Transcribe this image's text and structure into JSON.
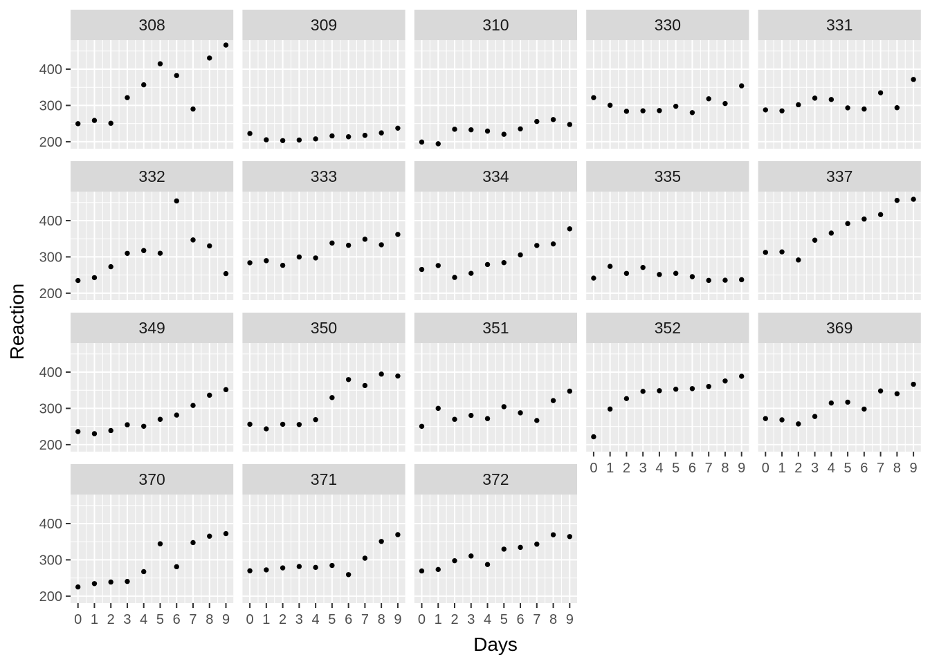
{
  "figure": {
    "x_axis_title": "Days",
    "y_axis_title": "Reaction"
  },
  "chart_data": {
    "type": "scatter",
    "title": "",
    "xlabel": "Days",
    "ylabel": "Reaction",
    "x": [
      0,
      1,
      2,
      3,
      4,
      5,
      6,
      7,
      8,
      9
    ],
    "x_ticks": [
      0,
      1,
      2,
      3,
      4,
      5,
      6,
      7,
      8,
      9
    ],
    "y_ticks": [
      200,
      300,
      400
    ],
    "y_minor_ticks": [
      250,
      350,
      450
    ],
    "x_minor_ticks": [
      0.5,
      1.5,
      2.5,
      3.5,
      4.5,
      5.5,
      6.5,
      7.5,
      8.5
    ],
    "xlim": [
      -0.45,
      9.45
    ],
    "ylim": [
      180.7,
      480.0
    ],
    "grid": "major-and-minor-white",
    "legend": "none",
    "facet_columns": 5,
    "facets": [
      {
        "subject": "308",
        "values": [
          249.6,
          258.7,
          250.8,
          321.4,
          356.9,
          414.7,
          382.2,
          290.1,
          430.6,
          466.4
        ]
      },
      {
        "subject": "309",
        "values": [
          222.7,
          205.3,
          203.0,
          204.7,
          207.7,
          216.0,
          213.6,
          217.7,
          224.3,
          237.3
        ]
      },
      {
        "subject": "310",
        "values": [
          199.1,
          194.3,
          234.3,
          232.8,
          229.3,
          220.5,
          235.4,
          255.8,
          261.0,
          247.5
        ]
      },
      {
        "subject": "330",
        "values": [
          321.5,
          300.4,
          283.9,
          285.1,
          285.8,
          297.6,
          280.2,
          318.3,
          305.3,
          354.0
        ]
      },
      {
        "subject": "331",
        "values": [
          287.6,
          285.0,
          301.8,
          320.1,
          316.3,
          293.3,
          290.1,
          334.8,
          293.7,
          371.6
        ]
      },
      {
        "subject": "332",
        "values": [
          234.9,
          242.8,
          273.0,
          309.8,
          317.5,
          310.0,
          454.2,
          346.8,
          330.3,
          253.9
        ]
      },
      {
        "subject": "333",
        "values": [
          283.8,
          289.6,
          276.8,
          299.8,
          297.2,
          338.2,
          332.0,
          348.8,
          333.4,
          362.0
        ]
      },
      {
        "subject": "334",
        "values": [
          265.5,
          276.2,
          243.4,
          254.7,
          279.0,
          284.2,
          305.5,
          331.5,
          335.7,
          377.3
        ]
      },
      {
        "subject": "335",
        "values": [
          241.6,
          273.9,
          254.5,
          270.8,
          251.5,
          254.6,
          245.5,
          235.3,
          235.8,
          237.2
        ]
      },
      {
        "subject": "337",
        "values": [
          312.4,
          313.8,
          291.6,
          346.1,
          365.7,
          391.8,
          404.3,
          416.7,
          455.9,
          458.9
        ]
      },
      {
        "subject": "349",
        "values": [
          236.1,
          230.3,
          238.9,
          254.9,
          250.7,
          269.8,
          281.6,
          308.1,
          336.3,
          351.6
        ]
      },
      {
        "subject": "350",
        "values": [
          256.3,
          243.5,
          256.2,
          255.5,
          268.9,
          329.7,
          379.4,
          362.9,
          394.5,
          389.1
        ]
      },
      {
        "subject": "351",
        "values": [
          250.5,
          300.1,
          269.9,
          280.6,
          271.8,
          304.6,
          287.7,
          266.6,
          321.5,
          347.6
        ]
      },
      {
        "subject": "352",
        "values": [
          221.7,
          298.2,
          326.9,
          346.9,
          348.7,
          352.8,
          354.4,
          360.4,
          375.6,
          388.5
        ]
      },
      {
        "subject": "369",
        "values": [
          271.9,
          268.4,
          257.2,
          277.7,
          314.8,
          317.2,
          298.1,
          348.1,
          340.3,
          366.5
        ]
      },
      {
        "subject": "370",
        "values": [
          225.3,
          234.5,
          238.9,
          240.5,
          267.5,
          344.2,
          281.1,
          347.6,
          365.2,
          372.2
        ]
      },
      {
        "subject": "371",
        "values": [
          269.9,
          272.4,
          277.9,
          281.8,
          279.2,
          284.5,
          259.3,
          304.6,
          350.8,
          369.5
        ]
      },
      {
        "subject": "372",
        "values": [
          269.4,
          273.5,
          297.6,
          310.6,
          287.2,
          329.6,
          334.5,
          343.2,
          369.1,
          364.1
        ]
      }
    ]
  },
  "theme": {
    "background": "#FFFFFF",
    "panel_bg": "#EBEBEB",
    "strip_bg": "#D9D9D9",
    "grid_color": "#FFFFFF",
    "point_color": "#000000",
    "axis_text_color": "#4D4D4D",
    "strip_text_color": "#1A1A1A",
    "axis_title_color": "#000000",
    "tick_mark_color": "#333333"
  }
}
